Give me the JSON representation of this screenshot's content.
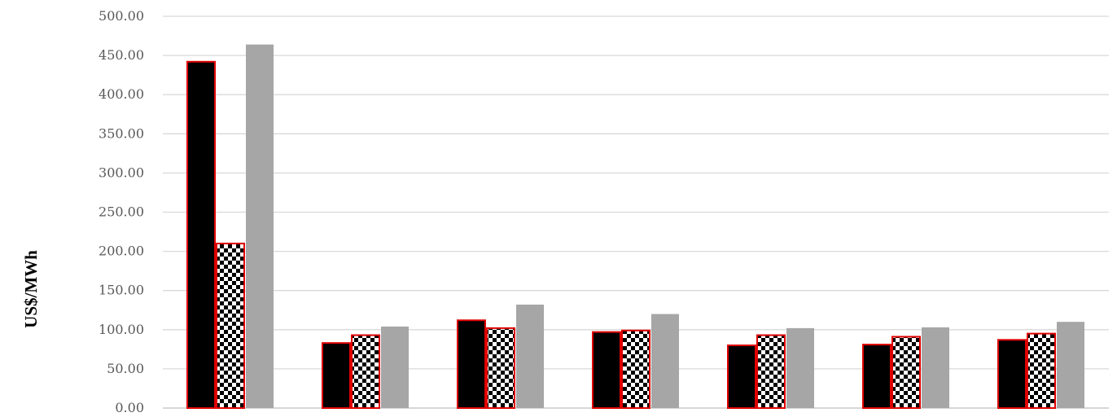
{
  "chart_data": {
    "type": "bar",
    "ylabel": "US$/MWh",
    "xlabel": "",
    "ylim": [
      0,
      500
    ],
    "ytick_step": 50,
    "y_tick_labels": [
      "0.00",
      "50.00",
      "100.00",
      "150.00",
      "200.00",
      "250.00",
      "300.00",
      "350.00",
      "400.00",
      "450.00",
      "500.00"
    ],
    "grid": true,
    "categories": [
      "",
      "",
      "",
      "",
      "",
      "",
      ""
    ],
    "series": [
      {
        "style": "solid-black",
        "color": "#000000",
        "outline": "#e00000",
        "values": [
          442,
          83,
          112,
          97,
          80,
          81,
          87
        ]
      },
      {
        "style": "checkerboard",
        "color": "#000000",
        "outline": "#e00000",
        "values": [
          210,
          93,
          102,
          99,
          93,
          91,
          95
        ]
      },
      {
        "style": "solid-gray",
        "color": "#a6a6a6",
        "outline": "none",
        "values": [
          464,
          104,
          132,
          120,
          102,
          103,
          110
        ]
      }
    ]
  }
}
